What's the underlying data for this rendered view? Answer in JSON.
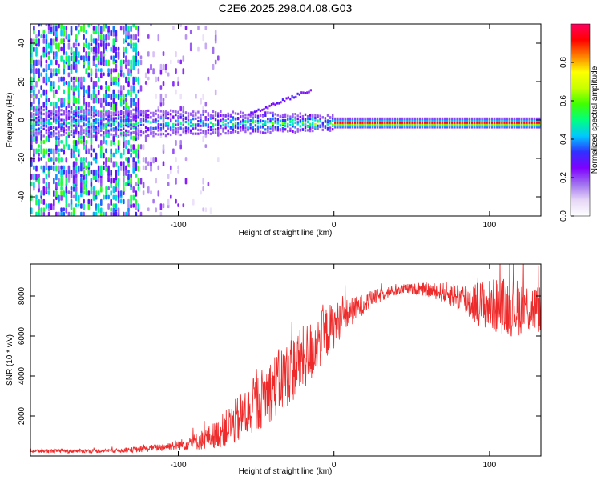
{
  "title": "C2E6.2025.298.04.08.G03",
  "chart_data": [
    {
      "type": "heatmap",
      "xlabel": "Height of straight line (km)",
      "ylabel": "Frequency (Hz)",
      "xlim": [
        -195,
        133
      ],
      "ylim": [
        -50,
        50
      ],
      "xticks": [
        -100,
        0,
        100
      ],
      "yticks": [
        -40,
        -20,
        0,
        20,
        40
      ],
      "carrier_frequency_hz": -1.5,
      "colorbar": {
        "label": "Normalized spectral amplitude",
        "range": [
          0.0,
          1.0
        ],
        "ticks": [
          0.0,
          0.2,
          0.4,
          0.6,
          0.8
        ],
        "tick_labels": [
          "0.0",
          "0.2",
          "0.4",
          "0.6",
          "0.8"
        ],
        "colors": [
          "#ffffff",
          "#e6d6f7",
          "#a070f0",
          "#7f00ff",
          "#3030ff",
          "#00c8ff",
          "#00ff80",
          "#40ff00",
          "#c8ff00",
          "#ffff00",
          "#ff8000",
          "#ff0000",
          "#ff0060"
        ]
      }
    },
    {
      "type": "line",
      "xlabel": "Height of straight line (km)",
      "ylabel": "SNR (10 * v/v)",
      "xlim": [
        -195,
        133
      ],
      "ylim": [
        0,
        9600
      ],
      "xticks": [
        -100,
        0,
        100
      ],
      "yticks": [
        2000,
        4000,
        6000,
        8000
      ],
      "series": [
        {
          "name": "SNR",
          "color": "#ee2a2a",
          "envelope_x": [
            -195,
            -160,
            -140,
            -125,
            -110,
            -95,
            -85,
            -75,
            -65,
            -55,
            -45,
            -35,
            -25,
            -15,
            -8,
            -3,
            5,
            15,
            25,
            35,
            45,
            55,
            65,
            75,
            85,
            95,
            105,
            115,
            125,
            133
          ],
          "envelope_mean": [
            250,
            250,
            270,
            330,
            450,
            600,
            800,
            1100,
            1600,
            2200,
            3000,
            3700,
            4500,
            5200,
            5900,
            6300,
            6900,
            7400,
            7900,
            8200,
            8350,
            8350,
            8250,
            8100,
            7800,
            7600,
            7500,
            7450,
            7400,
            7350
          ],
          "envelope_spread": [
            100,
            100,
            100,
            150,
            200,
            300,
            500,
            700,
            1100,
            1400,
            1500,
            1700,
            1700,
            1600,
            1400,
            1300,
            900,
            600,
            400,
            300,
            250,
            300,
            400,
            600,
            900,
            1200,
            1400,
            1500,
            1300,
            1200
          ]
        }
      ]
    }
  ]
}
